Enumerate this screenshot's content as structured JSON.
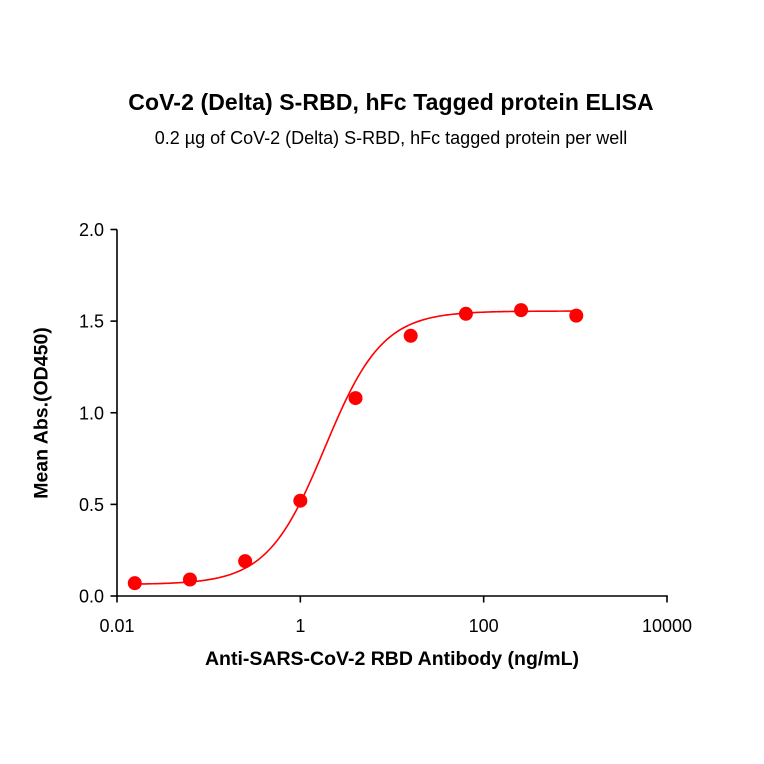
{
  "chart_data": {
    "type": "scatter",
    "title": "CoV-2 (Delta) S-RBD, hFc Tagged protein ELISA",
    "subtitle": "0.2 µg of CoV-2 (Delta) S-RBD, hFc tagged protein per well",
    "xlabel": "Anti-SARS-CoV-2 RBD Antibody (ng/mL)",
    "ylabel": "Mean Abs.(OD450)",
    "xscale": "log",
    "xlim": [
      0.01,
      10000
    ],
    "ylim": [
      0.0,
      2.0
    ],
    "xticks": [
      0.01,
      1,
      100,
      10000
    ],
    "xtick_labels": [
      "0.01",
      "1",
      "100",
      "10000"
    ],
    "yticks": [
      0.0,
      0.5,
      1.0,
      1.5,
      2.0
    ],
    "ytick_labels": [
      "0.0",
      "0.5",
      "1.0",
      "1.5",
      "2.0"
    ],
    "grid": false,
    "legend": null,
    "series": [
      {
        "name": "CoV-2 (Delta) S-RBD, hFc",
        "color": "#ff0000",
        "marker": "circle",
        "x": [
          0.015625,
          0.0625,
          0.25,
          1,
          4,
          16,
          64,
          256,
          1024
        ],
        "y": [
          0.07,
          0.09,
          0.19,
          0.52,
          1.08,
          1.42,
          1.54,
          1.56,
          1.53
        ],
        "fit": {
          "model": "4PL",
          "bottom": 0.063,
          "top": 1.555,
          "ec50": 1.85,
          "hill": 1.38
        }
      }
    ]
  }
}
